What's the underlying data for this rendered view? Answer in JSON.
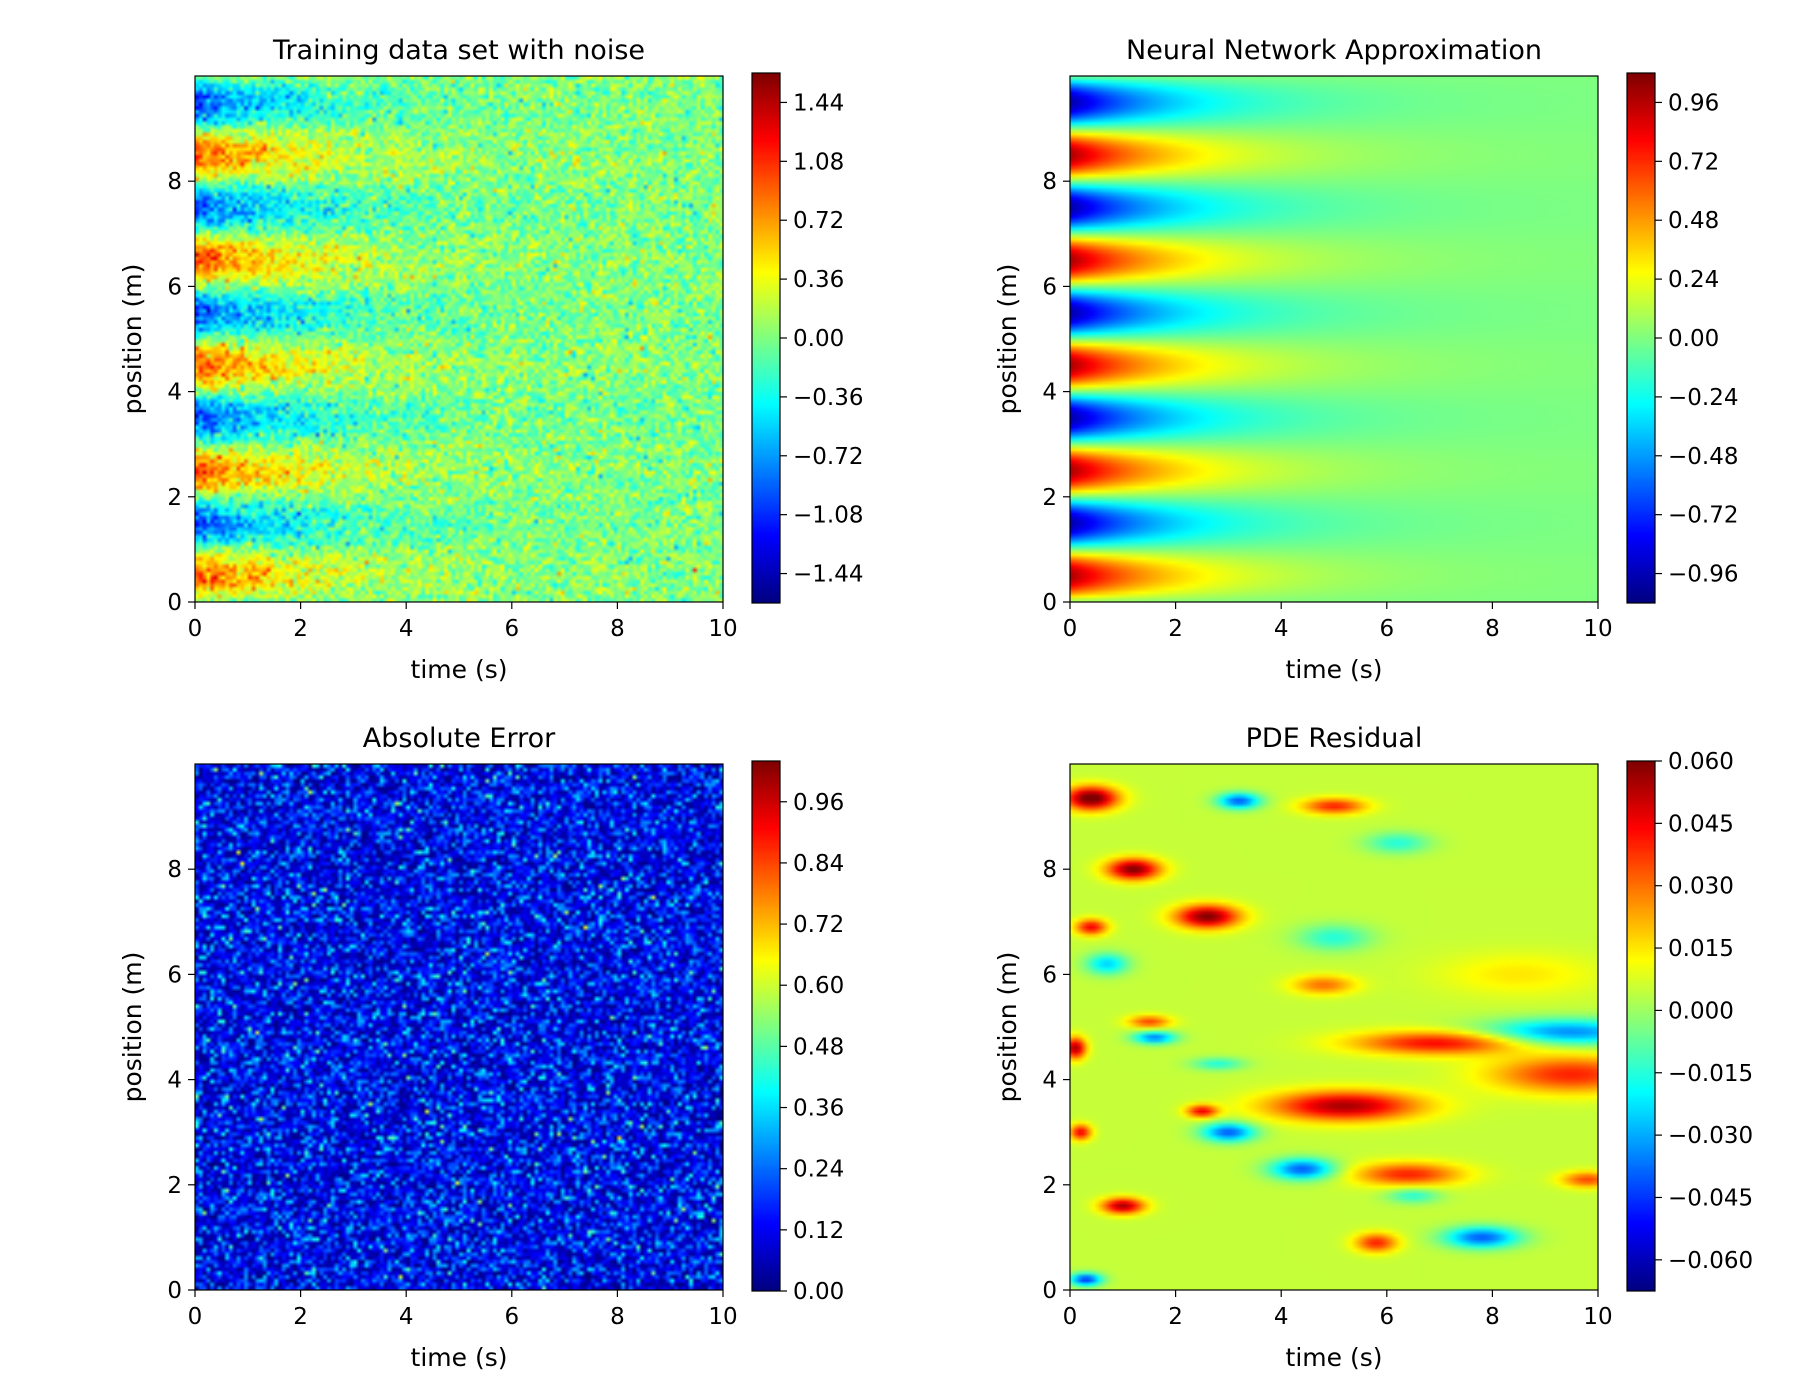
{
  "figure": {
    "background": "#ffffff",
    "colormap": "jet"
  },
  "chart_data": [
    {
      "id": "training",
      "type": "heatmap",
      "title": "Training data set with noise",
      "xlabel": "time (s)",
      "ylabel": "position (m)",
      "xlim": [
        0,
        10
      ],
      "ylim": [
        0,
        10
      ],
      "xticks": [
        0,
        2,
        4,
        6,
        8,
        10
      ],
      "yticks": [
        0,
        2,
        4,
        6,
        8
      ],
      "field": "u(x,t) = sin(pi*x) * exp(-0.5*t) with additive gaussian noise (sigma ~0.2)",
      "colorbar": {
        "range": [
          -1.62,
          1.62
        ],
        "ticks": [
          -1.44,
          -1.08,
          -0.72,
          -0.36,
          0.0,
          0.36,
          0.72,
          1.08,
          1.44
        ],
        "tick_labels": [
          "−1.44",
          "−1.08",
          "−0.72",
          "−0.36",
          "0.00",
          "0.36",
          "0.72",
          "1.08",
          "1.44"
        ]
      }
    },
    {
      "id": "nn",
      "type": "heatmap",
      "title": "Neural Network Approximation",
      "xlabel": "time (s)",
      "ylabel": "position (m)",
      "xlim": [
        0,
        10
      ],
      "ylim": [
        0,
        10
      ],
      "xticks": [
        0,
        2,
        4,
        6,
        8,
        10
      ],
      "yticks": [
        0,
        2,
        4,
        6,
        8
      ],
      "field": "u(x,t) = sin(pi*x) * exp(-0.5*t)",
      "colorbar": {
        "range": [
          -1.08,
          1.08
        ],
        "ticks": [
          -0.96,
          -0.72,
          -0.48,
          -0.24,
          0.0,
          0.24,
          0.48,
          0.72,
          0.96
        ],
        "tick_labels": [
          "−0.96",
          "−0.72",
          "−0.48",
          "−0.24",
          "0.00",
          "0.24",
          "0.48",
          "0.72",
          "0.96"
        ]
      }
    },
    {
      "id": "error",
      "type": "heatmap",
      "title": "Absolute Error",
      "xlabel": "time (s)",
      "ylabel": "position (m)",
      "xlim": [
        0,
        10
      ],
      "ylim": [
        0,
        10
      ],
      "xticks": [
        0,
        2,
        4,
        6,
        8,
        10
      ],
      "yticks": [
        0,
        2,
        4,
        6,
        8
      ],
      "field": "|noise| uniformly distributed, mostly 0.0-0.5",
      "colorbar": {
        "range": [
          0.0,
          1.04
        ],
        "ticks": [
          0.0,
          0.12,
          0.24,
          0.36,
          0.48,
          0.6,
          0.72,
          0.84,
          0.96
        ],
        "tick_labels": [
          "0.00",
          "0.12",
          "0.24",
          "0.36",
          "0.48",
          "0.60",
          "0.72",
          "0.84",
          "0.96"
        ]
      }
    },
    {
      "id": "residual",
      "type": "heatmap",
      "title": "PDE Residual",
      "xlabel": "time (s)",
      "ylabel": "position (m)",
      "xlim": [
        0,
        10
      ],
      "ylim": [
        0,
        10
      ],
      "xticks": [
        0,
        2,
        4,
        6,
        8,
        10
      ],
      "yticks": [
        0,
        2,
        4,
        6,
        8
      ],
      "field": "smooth blobs, range about -0.065 to 0.06",
      "colorbar": {
        "range": [
          -0.0675,
          0.06
        ],
        "ticks": [
          -0.06,
          -0.045,
          -0.03,
          -0.015,
          0.0,
          0.015,
          0.03,
          0.045,
          0.06
        ],
        "tick_labels": [
          "−0.060",
          "−0.045",
          "−0.030",
          "−0.015",
          "0.000",
          "0.015",
          "0.030",
          "0.045",
          "0.060"
        ]
      }
    }
  ]
}
